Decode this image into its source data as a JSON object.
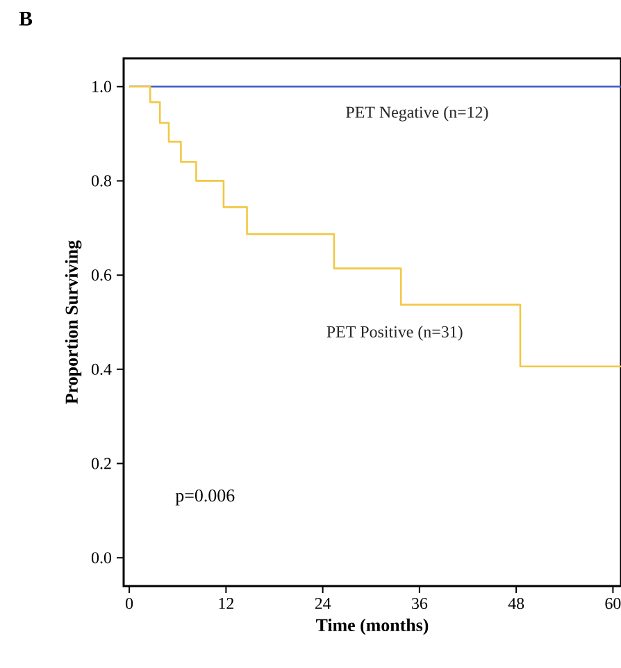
{
  "chart_data": {
    "type": "step",
    "title": "B",
    "xlabel": "Time (months)",
    "ylabel": "Proportion Surviving",
    "xlim": [
      -0.7,
      61
    ],
    "ylim": [
      -0.06,
      1.06
    ],
    "xticks": [
      0,
      12,
      24,
      36,
      48,
      60
    ],
    "yticks": [
      {
        "value": 0,
        "label": "0.0"
      },
      0.2,
      0.4,
      0.6,
      0.8,
      {
        "value": 1,
        "label": "1.0"
      }
    ],
    "series": [
      {
        "name": "PET Negative (n=12)",
        "color": "#3f57c8",
        "x": [
          0,
          61
        ],
        "values": [
          1,
          1
        ]
      },
      {
        "name": "PET Positive (n=31)",
        "color": "#f2c744",
        "x": [
          0,
          2.6,
          3.8,
          4.9,
          6.4,
          8.3,
          11.7,
          14.6,
          25.4,
          33.7,
          48.5,
          61
        ],
        "values": [
          1,
          0.967,
          0.923,
          0.883,
          0.84,
          0.8,
          0.744,
          0.687,
          0.614,
          0.537,
          0.406,
          0.406
        ]
      }
    ],
    "annotations": [
      "p=0.006"
    ],
    "legend": false,
    "grid": false
  }
}
